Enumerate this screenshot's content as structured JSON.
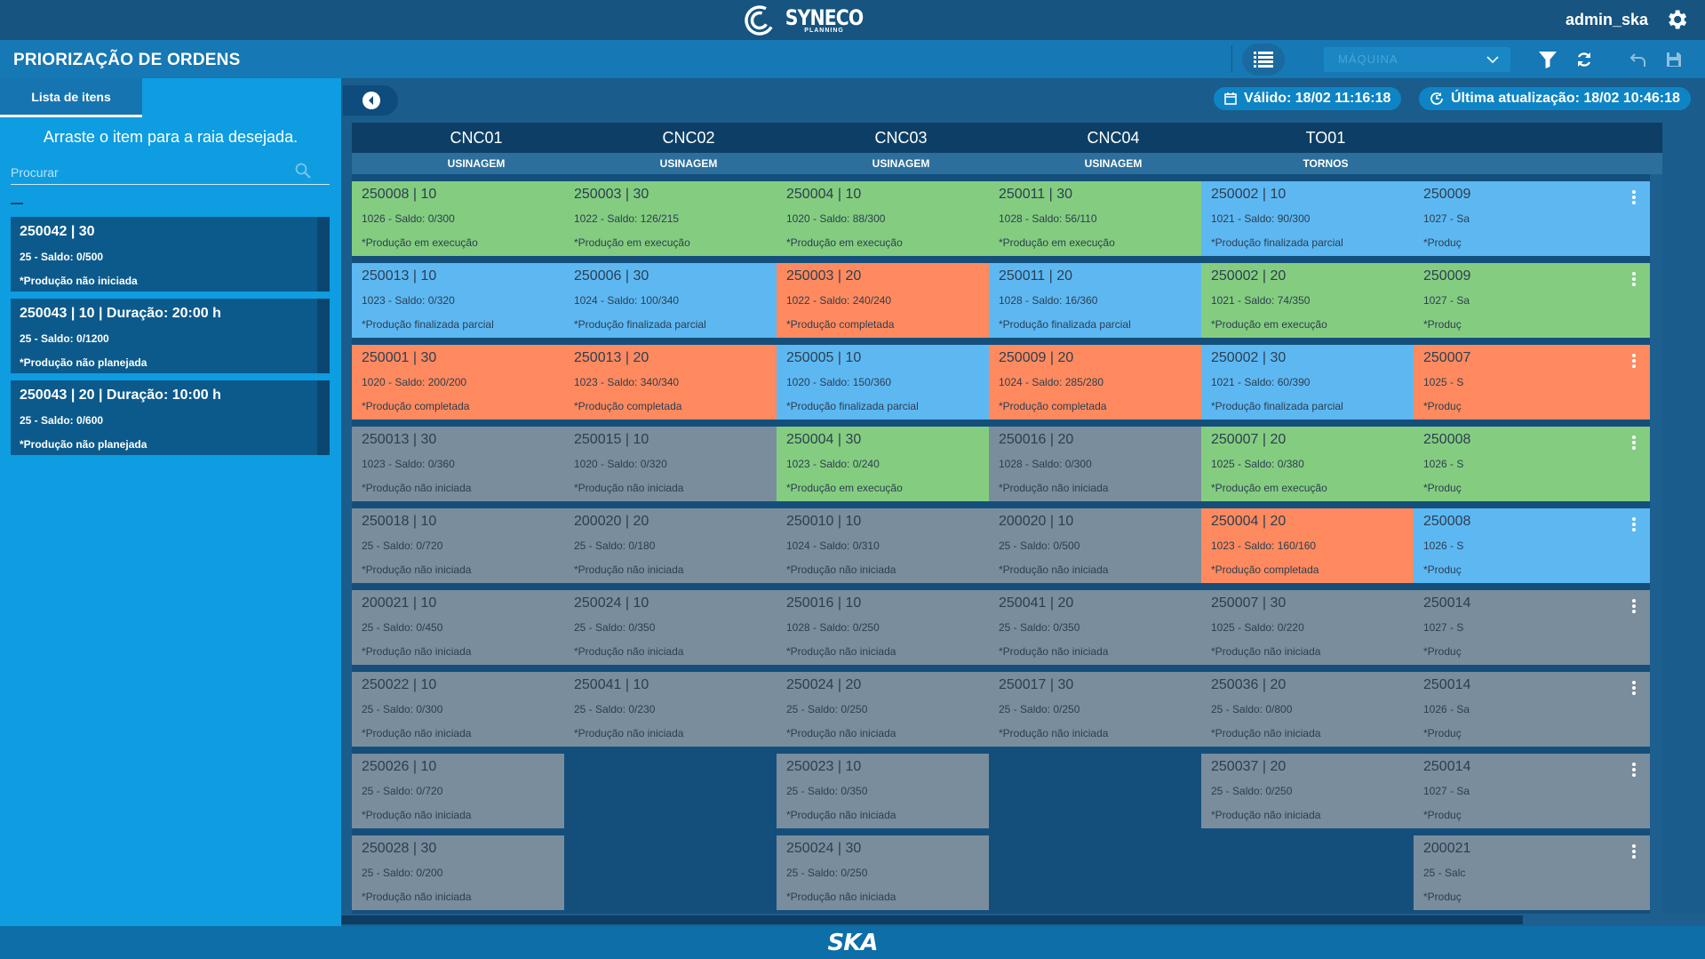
{
  "app": {
    "logo_name": "SYNECO",
    "logo_sub": "PLANNING",
    "user": "admin_ska",
    "page_title": "PRIORIZAÇÃO DE ORDENS",
    "footer_logo": "SKA"
  },
  "toolbar": {
    "machine_placeholder": "MÁQUINA",
    "icons": [
      "list-icon",
      "filter-icon",
      "refresh-icon",
      "undo-icon",
      "save-icon"
    ]
  },
  "sidebar": {
    "tab": "Lista de itens",
    "hint": "Arraste o item para a raia desejada.",
    "search_placeholder": "Procurar",
    "items": [
      {
        "title": "250042 | 30",
        "line": "25 - Saldo: 0/500",
        "status": "*Produção não iniciada"
      },
      {
        "title": "250043 | 10 | Duração: 20:00 h",
        "line": "25 - Saldo: 0/1200",
        "status": "*Produção não planejada"
      },
      {
        "title": "250043 | 20 | Duração: 10:00 h",
        "line": "25 - Saldo: 0/600",
        "status": "*Produção não planejada"
      }
    ]
  },
  "board": {
    "valid": "Válido: 18/02 11:16:18",
    "updated": "Última atualização: 18/02 10:46:18",
    "colors": {
      "green": "#84cd80",
      "blue": "#5db8f2",
      "orange": "#ff8a5f",
      "gray": "#7a8d9c"
    },
    "lanes": [
      {
        "name": "CNC01",
        "group": "USINAGEM",
        "cards": [
          {
            "title": "250008 | 10",
            "line": "1026 - Saldo: 0/300",
            "status": "*Produção em execução",
            "color": "green"
          },
          {
            "title": "250013 | 10",
            "line": "1023 - Saldo: 0/320",
            "status": "*Produção finalizada parcial",
            "color": "blue"
          },
          {
            "title": "250001 | 30",
            "line": "1020 - Saldo: 200/200",
            "status": "*Produção completada",
            "color": "orange"
          },
          {
            "title": "250013 | 30",
            "line": "1023 - Saldo: 0/360",
            "status": "*Produção não iniciada",
            "color": "gray"
          },
          {
            "title": "250018 | 10",
            "line": "25 - Saldo: 0/720",
            "status": "*Produção não iniciada",
            "color": "gray"
          },
          {
            "title": "200021 | 10",
            "line": "25 - Saldo: 0/450",
            "status": "*Produção não iniciada",
            "color": "gray"
          },
          {
            "title": "250022 | 10",
            "line": "25 - Saldo: 0/300",
            "status": "*Produção não iniciada",
            "color": "gray"
          },
          {
            "title": "250026 | 10",
            "line": "25 - Saldo: 0/720",
            "status": "*Produção não iniciada",
            "color": "gray"
          },
          {
            "title": "250028 | 30",
            "line": "25 - Saldo: 0/200",
            "status": "*Produção não iniciada",
            "color": "gray"
          }
        ]
      },
      {
        "name": "CNC02",
        "group": "USINAGEM",
        "cards": [
          {
            "title": "250003 | 30",
            "line": "1022 - Saldo: 126/215",
            "status": "*Produção em execução",
            "color": "green"
          },
          {
            "title": "250006 | 30",
            "line": "1024 - Saldo: 100/340",
            "status": "*Produção finalizada parcial",
            "color": "blue"
          },
          {
            "title": "250013 | 20",
            "line": "1023 - Saldo: 340/340",
            "status": "*Produção completada",
            "color": "orange"
          },
          {
            "title": "250015 | 10",
            "line": "1020 - Saldo: 0/320",
            "status": "*Produção não iniciada",
            "color": "gray"
          },
          {
            "title": "200020 | 20",
            "line": "25 - Saldo: 0/180",
            "status": "*Produção não iniciada",
            "color": "gray"
          },
          {
            "title": "250024 | 10",
            "line": "25 - Saldo: 0/350",
            "status": "*Produção não iniciada",
            "color": "gray"
          },
          {
            "title": "250041 | 10",
            "line": "25 - Saldo: 0/230",
            "status": "*Produção não iniciada",
            "color": "gray"
          }
        ]
      },
      {
        "name": "CNC03",
        "group": "USINAGEM",
        "cards": [
          {
            "title": "250004 | 10",
            "line": "1020 - Saldo: 88/300",
            "status": "*Produção em execução",
            "color": "green"
          },
          {
            "title": "250003 | 20",
            "line": "1022 - Saldo: 240/240",
            "status": "*Produção completada",
            "color": "orange"
          },
          {
            "title": "250005 | 10",
            "line": "1020 - Saldo: 150/360",
            "status": "*Produção finalizada parcial",
            "color": "blue"
          },
          {
            "title": "250004 | 30",
            "line": "1023 - Saldo: 0/240",
            "status": "*Produção em execução",
            "color": "green"
          },
          {
            "title": "250010 | 10",
            "line": "1024 - Saldo: 0/310",
            "status": "*Produção não iniciada",
            "color": "gray"
          },
          {
            "title": "250016 | 10",
            "line": "1028 - Saldo: 0/250",
            "status": "*Produção não iniciada",
            "color": "gray"
          },
          {
            "title": "250024 | 20",
            "line": "25 - Saldo: 0/250",
            "status": "*Produção não iniciada",
            "color": "gray"
          },
          {
            "title": "250023 | 10",
            "line": "25 - Saldo: 0/350",
            "status": "*Produção não iniciada",
            "color": "gray"
          },
          {
            "title": "250024 | 30",
            "line": "25 - Saldo: 0/250",
            "status": "*Produção não iniciada",
            "color": "gray"
          }
        ]
      },
      {
        "name": "CNC04",
        "group": "USINAGEM",
        "cards": [
          {
            "title": "250011 | 30",
            "line": "1028 - Saldo: 56/110",
            "status": "*Produção em execução",
            "color": "green"
          },
          {
            "title": "250011 | 20",
            "line": "1028 - Saldo: 16/360",
            "status": "*Produção finalizada parcial",
            "color": "blue"
          },
          {
            "title": "250009 | 20",
            "line": "1024 - Saldo: 285/280",
            "status": "*Produção completada",
            "color": "orange"
          },
          {
            "title": "250016 | 20",
            "line": "1028 - Saldo: 0/300",
            "status": "*Produção não iniciada",
            "color": "gray"
          },
          {
            "title": "200020 | 10",
            "line": "25 - Saldo: 0/500",
            "status": "*Produção não iniciada",
            "color": "gray"
          },
          {
            "title": "250041 | 20",
            "line": "25 - Saldo: 0/350",
            "status": "*Produção não iniciada",
            "color": "gray"
          },
          {
            "title": "250017 | 30",
            "line": "25 - Saldo: 0/250",
            "status": "*Produção não iniciada",
            "color": "gray"
          }
        ]
      },
      {
        "name": "TO01",
        "group": "TORNOS",
        "cards": [
          {
            "title": "250002 | 10",
            "line": "1021 - Saldo: 90/300",
            "status": "*Produção finalizada parcial",
            "color": "blue"
          },
          {
            "title": "250002 | 20",
            "line": "1021 - Saldo: 74/350",
            "status": "*Produção em execução",
            "color": "green"
          },
          {
            "title": "250002 | 30",
            "line": "1021 - Saldo: 60/390",
            "status": "*Produção finalizada parcial",
            "color": "blue"
          },
          {
            "title": "250007 | 20",
            "line": "1025 - Saldo: 0/380",
            "status": "*Produção em execução",
            "color": "green"
          },
          {
            "title": "250004 | 20",
            "line": "1023 - Saldo: 160/160",
            "status": "*Produção completada",
            "color": "orange"
          },
          {
            "title": "250007 | 30",
            "line": "1025 - Saldo: 0/220",
            "status": "*Produção não iniciada",
            "color": "gray"
          },
          {
            "title": "250036 | 20",
            "line": "25 - Saldo: 0/800",
            "status": "*Produção não iniciada",
            "color": "gray"
          },
          {
            "title": "250037 | 20",
            "line": "25 - Saldo: 0/250",
            "status": "*Produção não iniciada",
            "color": "gray"
          }
        ]
      },
      {
        "name": "",
        "group": "",
        "cards": [
          {
            "title": "250009",
            "line": "1027 - Sa",
            "status": "*Produç",
            "color": "blue"
          },
          {
            "title": "250009",
            "line": "1027 - Sa",
            "status": "*Produç",
            "color": "green"
          },
          {
            "title": "250007",
            "line": "1025 - S",
            "status": "*Produç",
            "color": "orange"
          },
          {
            "title": "250008",
            "line": "1026 - S",
            "status": "*Produç",
            "color": "green"
          },
          {
            "title": "250008",
            "line": "1026 - S",
            "status": "*Produç",
            "color": "blue"
          },
          {
            "title": "250014",
            "line": "1027 - S",
            "status": "*Produç",
            "color": "gray"
          },
          {
            "title": "250014",
            "line": "1026 - Sa",
            "status": "*Produç",
            "color": "gray"
          },
          {
            "title": "250014",
            "line": "1027 - Sa",
            "status": "*Produç",
            "color": "gray"
          },
          {
            "title": "200021",
            "line": "25 - Salc",
            "status": "*Produç",
            "color": "gray"
          }
        ]
      }
    ]
  }
}
